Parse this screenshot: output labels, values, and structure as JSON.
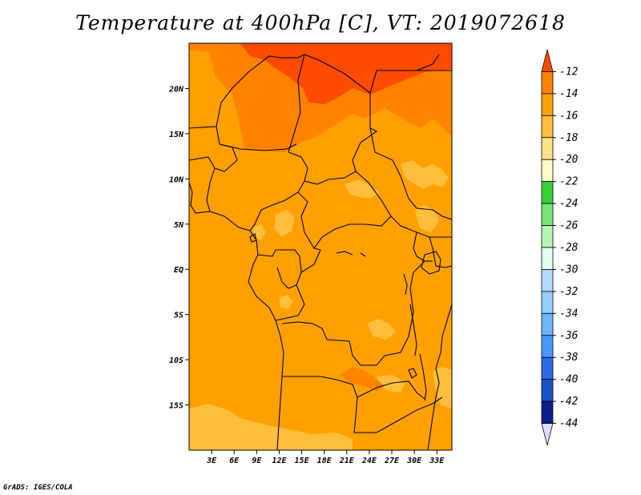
{
  "title": "Temperature at 400hPa [C], VT: 2019072618",
  "credit": "GrADS: IGES/COLA",
  "map": {
    "lat_labels": [
      {
        "value": 20,
        "label": "20N"
      },
      {
        "value": 15,
        "label": "15N"
      },
      {
        "value": 10,
        "label": "10N"
      },
      {
        "value": 5,
        "label": "5N"
      },
      {
        "value": 0,
        "label": "EQ"
      },
      {
        "value": -5,
        "label": "5S"
      },
      {
        "value": -10,
        "label": "10S"
      },
      {
        "value": -15,
        "label": "15S"
      }
    ],
    "lon_labels": [
      {
        "value": 3,
        "label": "3E"
      },
      {
        "value": 6,
        "label": "6E"
      },
      {
        "value": 9,
        "label": "9E"
      },
      {
        "value": 12,
        "label": "12E"
      },
      {
        "value": 15,
        "label": "15E"
      },
      {
        "value": 18,
        "label": "18E"
      },
      {
        "value": 21,
        "label": "21E"
      },
      {
        "value": 24,
        "label": "24E"
      },
      {
        "value": 27,
        "label": "27E"
      },
      {
        "value": 30,
        "label": "30E"
      },
      {
        "value": 33,
        "label": "33E"
      }
    ],
    "extent": {
      "lon_min": 0,
      "lon_max": 35,
      "lat_min": -20,
      "lat_max": 25
    },
    "colors": {
      "background_band": "#ffa000",
      "band_warmer": "#ff8200",
      "band_warmest": "#ff4b00",
      "band_cooler": "#ffbe3c"
    }
  },
  "colorbar": {
    "labels": [
      "-12",
      "-14",
      "-16",
      "-18",
      "-20",
      "-22",
      "-24",
      "-26",
      "-28",
      "-30",
      "-32",
      "-34",
      "-36",
      "-38",
      "-40",
      "-42",
      "-44"
    ],
    "colors": [
      "#ff4b00",
      "#ff8200",
      "#ffa000",
      "#ffbe3c",
      "#ffe185",
      "#fffac8",
      "#37d137",
      "#78e678",
      "#b4f5b4",
      "#e1fff0",
      "#b4dcff",
      "#96cdff",
      "#6eb4ff",
      "#4b96ff",
      "#2a6ae6",
      "#1a50c8",
      "#0a1e8c",
      "#dce0ff"
    ]
  }
}
